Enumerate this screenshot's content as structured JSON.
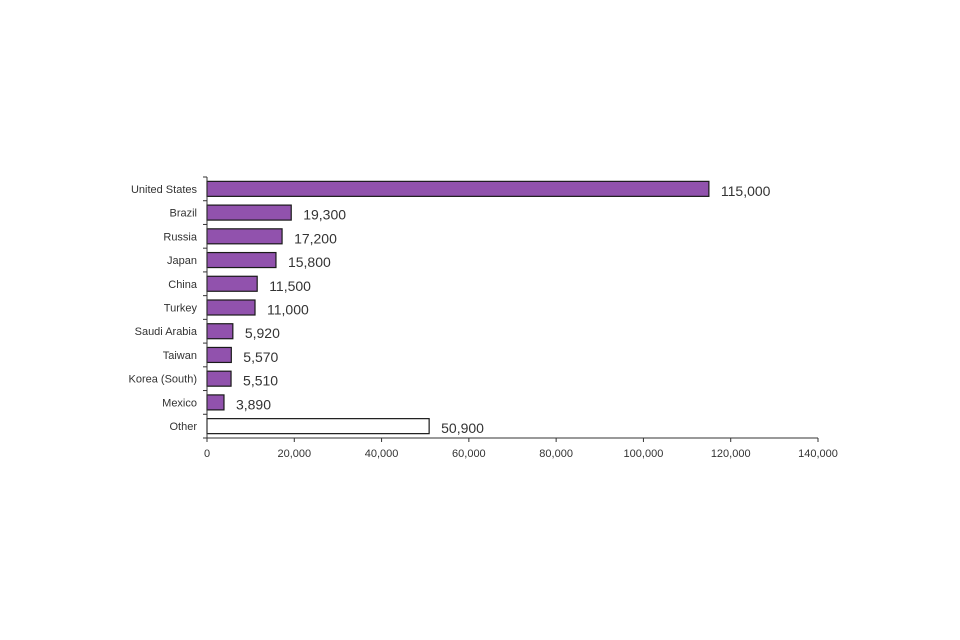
{
  "chart_data": {
    "type": "bar",
    "orientation": "horizontal",
    "categories": [
      "United States",
      "Brazil",
      "Russia",
      "Japan",
      "China",
      "Turkey",
      "Saudi Arabia",
      "Taiwan",
      "Korea (South)",
      "Mexico",
      "Other"
    ],
    "values": [
      115000,
      19300,
      17200,
      15800,
      11500,
      11000,
      5920,
      5570,
      5510,
      3890,
      50900
    ],
    "data_labels": [
      "115,000",
      "19,300",
      "17,200",
      "15,800",
      "11,500",
      "11,000",
      "5,920",
      "5,570",
      "5,510",
      "3,890",
      "50,900"
    ],
    "bar_fills": [
      "#9152ad",
      "#9152ad",
      "#9152ad",
      "#9152ad",
      "#9152ad",
      "#9152ad",
      "#9152ad",
      "#9152ad",
      "#9152ad",
      "#9152ad",
      "#ffffff"
    ],
    "bar_stroke": "#1a1a1a",
    "axis_color": "#333333",
    "xlim": [
      0,
      140000
    ],
    "xticks": [
      0,
      20000,
      40000,
      60000,
      80000,
      100000,
      120000,
      140000
    ],
    "xtick_labels": [
      "0",
      "20,000",
      "40,000",
      "60,000",
      "80,000",
      "100,000",
      "120,000",
      "140,000"
    ],
    "title": "",
    "xlabel": "",
    "ylabel": "",
    "grid": false,
    "legend": "none"
  }
}
